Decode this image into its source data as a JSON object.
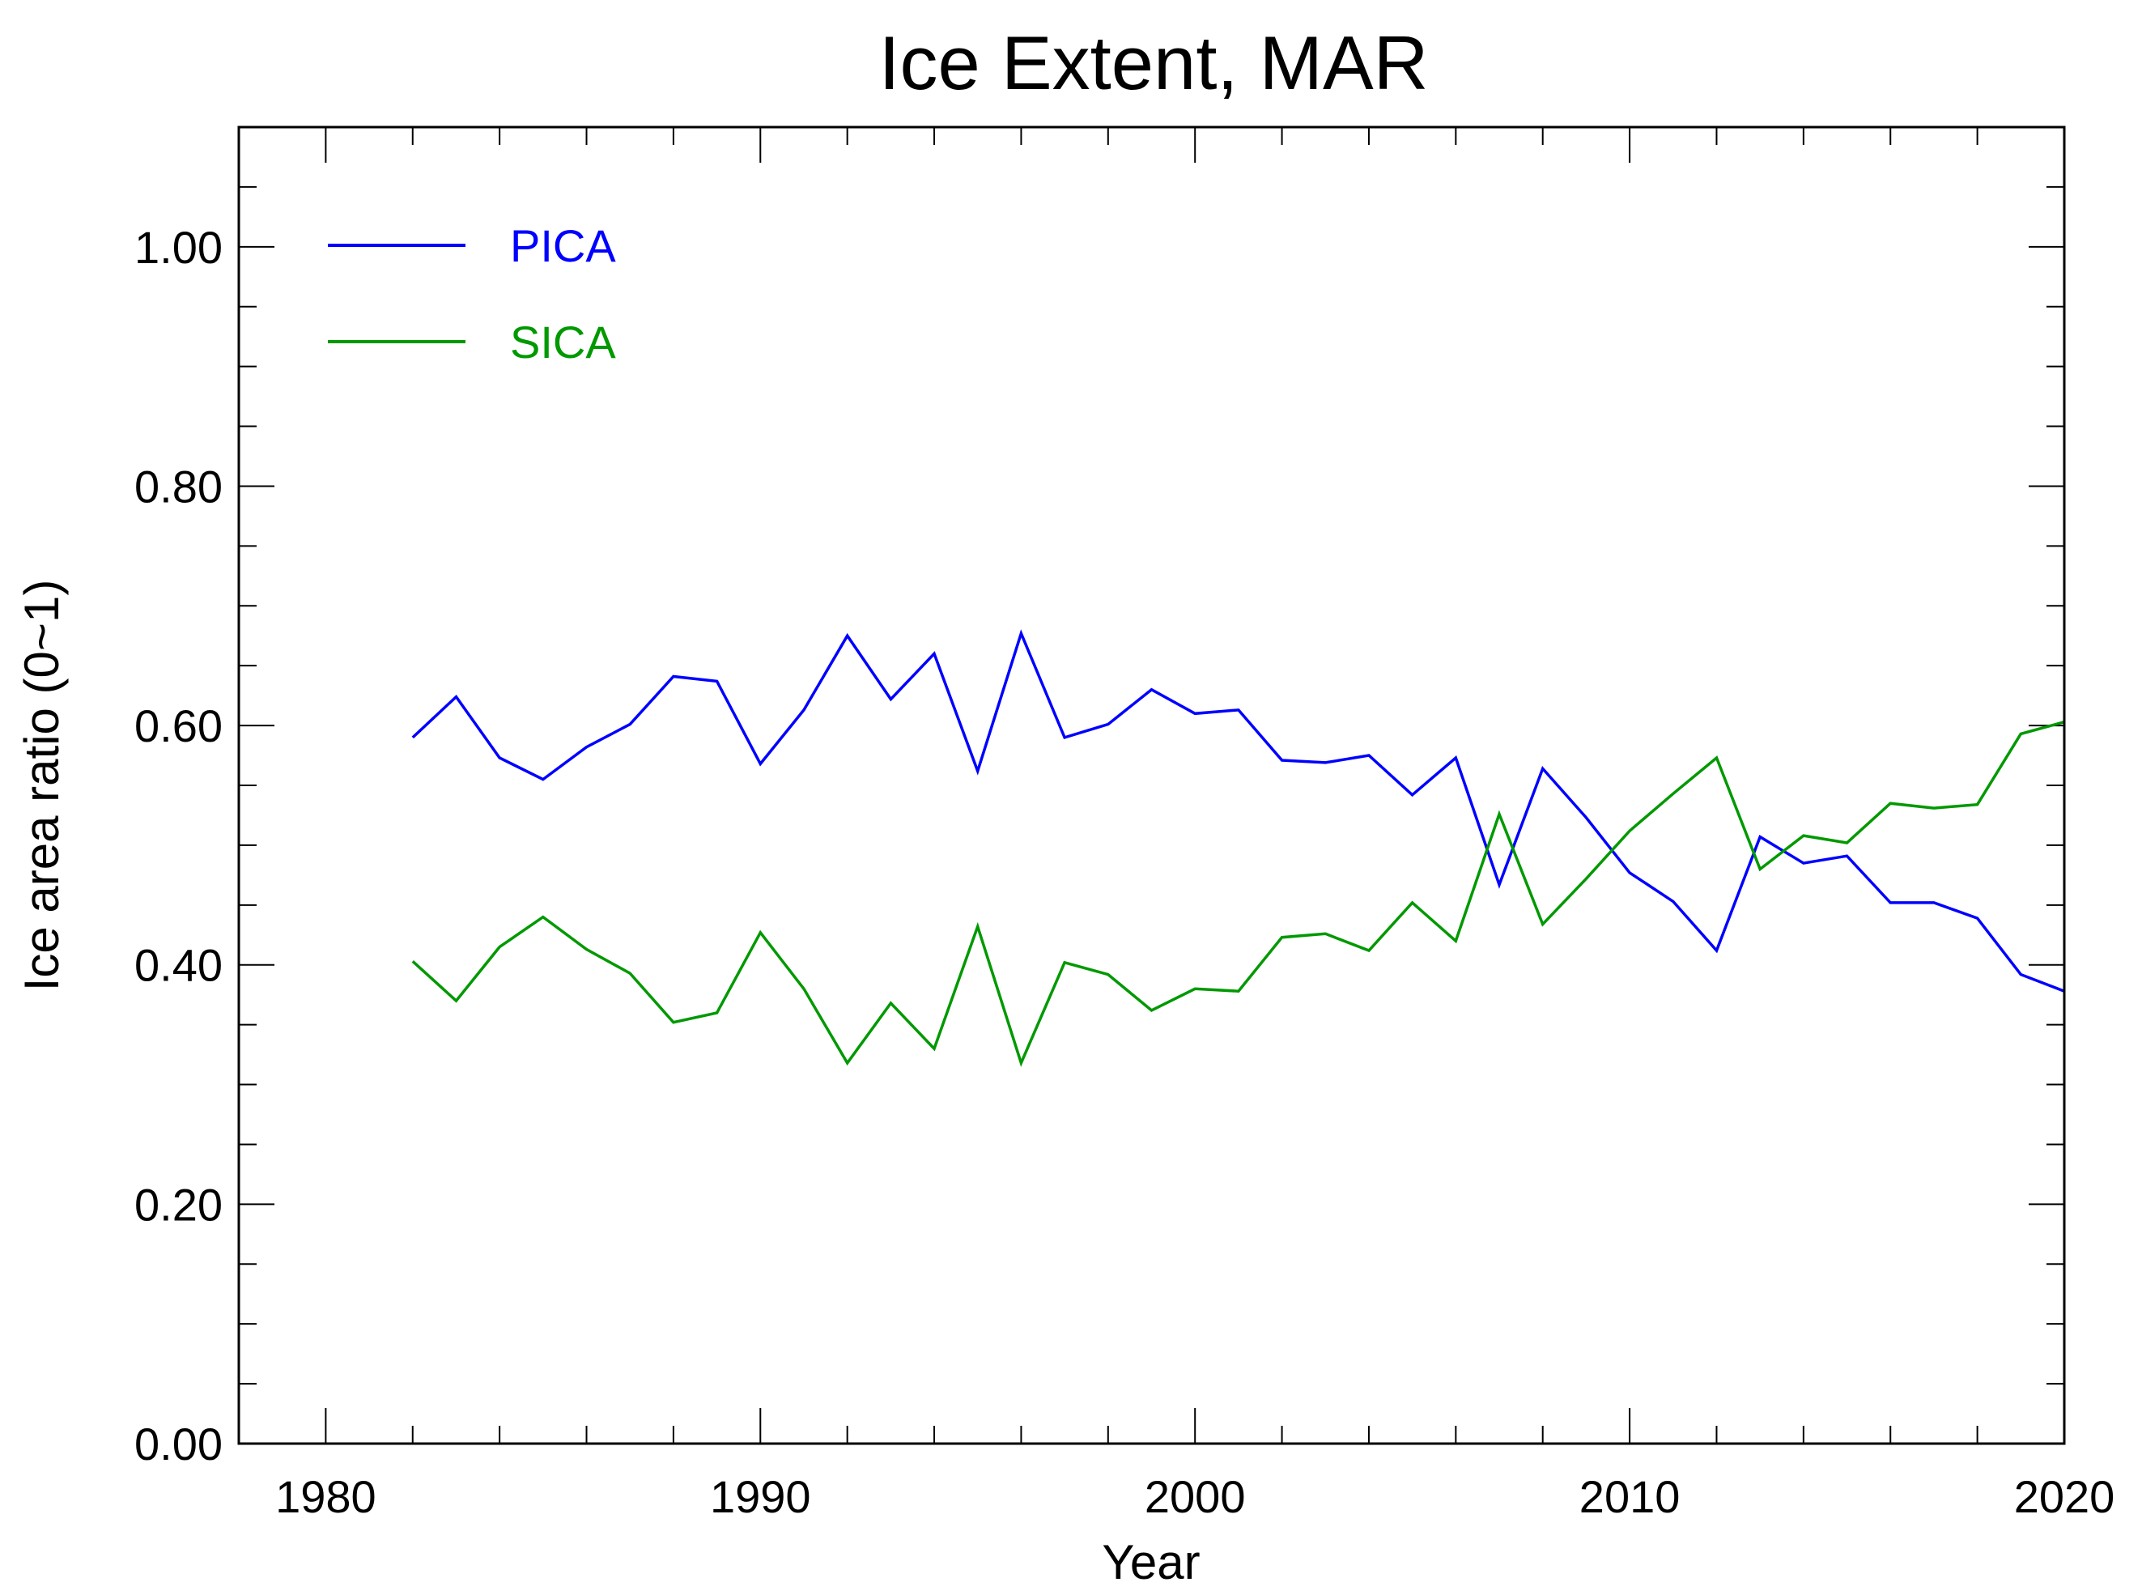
{
  "chart_data": {
    "type": "line",
    "title": "Ice Extent, MAR",
    "xlabel": "Year",
    "ylabel": "Ice area ratio (0~1)",
    "xlim": [
      1978,
      2020
    ],
    "ylim": [
      0,
      1.1
    ],
    "xticks": [
      1980,
      1990,
      2000,
      2010,
      2020
    ],
    "xtick_labels": [
      "1980",
      "1990",
      "2000",
      "2010",
      "2020"
    ],
    "yticks": [
      0,
      0.2,
      0.4,
      0.6,
      0.8,
      1.0
    ],
    "ytick_labels": [
      "0.00",
      "0.20",
      "0.40",
      "0.60",
      "0.80",
      "1.00"
    ],
    "grid": false,
    "legend_position": "top-left",
    "x": [
      1982,
      1983,
      1984,
      1985,
      1986,
      1987,
      1988,
      1989,
      1990,
      1991,
      1992,
      1993,
      1994,
      1995,
      1996,
      1997,
      1998,
      1999,
      2000,
      2001,
      2002,
      2003,
      2004,
      2005,
      2006,
      2007,
      2008,
      2009,
      2010,
      2011,
      2012,
      2013,
      2014,
      2015,
      2016,
      2017,
      2018,
      2019,
      2020
    ],
    "series": [
      {
        "name": "PICA",
        "color": "#0000ff",
        "values": [
          0.59,
          0.624,
          0.573,
          0.555,
          0.582,
          0.601,
          0.641,
          0.637,
          0.568,
          0.613,
          0.675,
          0.622,
          0.66,
          0.562,
          0.677,
          0.59,
          0.601,
          0.63,
          0.61,
          0.613,
          0.571,
          0.569,
          0.575,
          0.542,
          0.573,
          0.467,
          0.564,
          0.523,
          0.477,
          0.453,
          0.412,
          0.507,
          0.485,
          0.491,
          0.452,
          0.452,
          0.439,
          0.392,
          0.378
        ]
      },
      {
        "name": "SICA",
        "color": "#009900",
        "values": [
          0.403,
          0.37,
          0.415,
          0.44,
          0.413,
          0.393,
          0.352,
          0.36,
          0.427,
          0.38,
          0.318,
          0.368,
          0.33,
          0.432,
          0.318,
          0.402,
          0.392,
          0.362,
          0.38,
          0.378,
          0.423,
          0.426,
          0.412,
          0.452,
          0.42,
          0.526,
          0.434,
          0.472,
          0.512,
          0.543,
          0.573,
          0.48,
          0.508,
          0.502,
          0.535,
          0.531,
          0.534,
          0.593,
          0.603
        ]
      }
    ]
  }
}
